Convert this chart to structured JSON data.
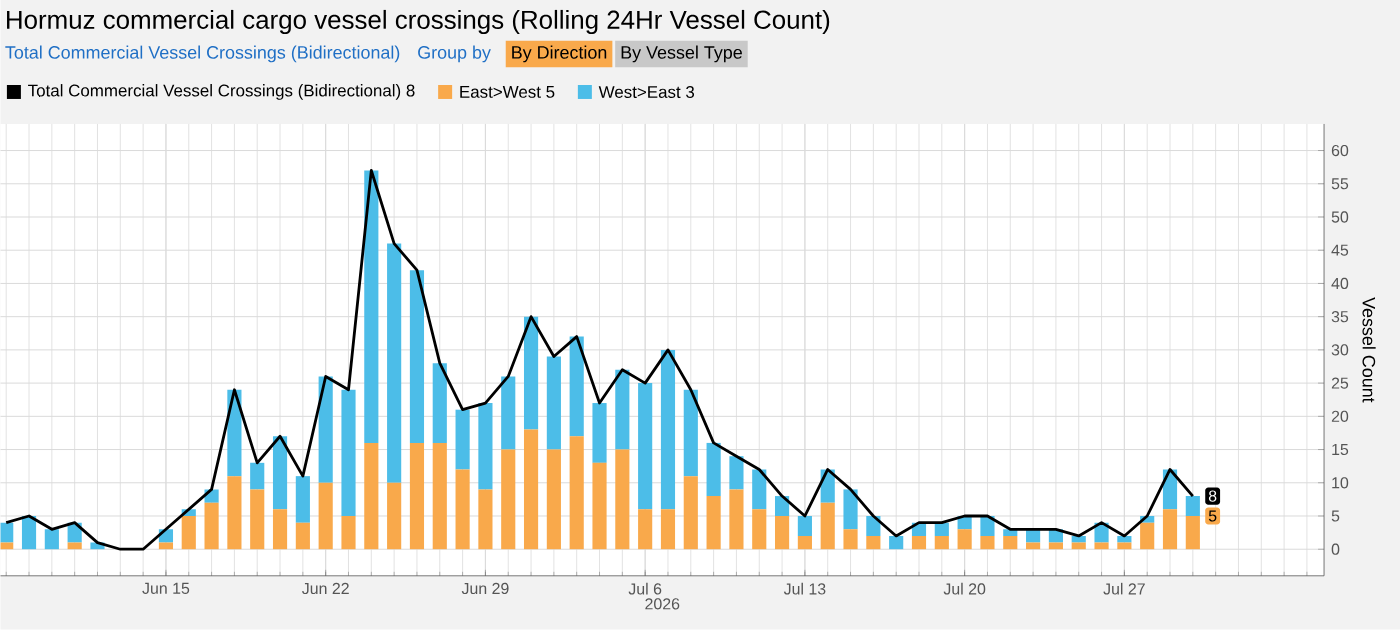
{
  "chart_data": {
    "type": "bar",
    "stacked": true,
    "title": "Hormuz commercial cargo vessel crossings (Rolling 24Hr Vessel Count)",
    "subtitle": "Total Commercial Vessel Crossings (Bidirectional)",
    "annotations": [
      "Group by",
      "By Direction",
      "By Vessel Type"
    ],
    "xlabel": "2026",
    "ylabel": "Vessel Count",
    "x": [
      "2026-06-08",
      "2026-06-09",
      "2026-06-10",
      "2026-06-11",
      "2026-06-12",
      "2026-06-13",
      "2026-06-14",
      "2026-06-15",
      "2026-06-16",
      "2026-06-17",
      "2026-06-18",
      "2026-06-19",
      "2026-06-20",
      "2026-06-21",
      "2026-06-22",
      "2026-06-23",
      "2026-06-24",
      "2026-06-25",
      "2026-06-26",
      "2026-06-27",
      "2026-06-28",
      "2026-06-29",
      "2026-06-30",
      "2026-07-01",
      "2026-07-02",
      "2026-07-03",
      "2026-07-04",
      "2026-07-05",
      "2026-07-06",
      "2026-07-07",
      "2026-07-08",
      "2026-07-09",
      "2026-07-10",
      "2026-07-11",
      "2026-07-12",
      "2026-07-13",
      "2026-07-14",
      "2026-07-15",
      "2026-07-16",
      "2026-07-17",
      "2026-07-18",
      "2026-07-19",
      "2026-07-20",
      "2026-07-21",
      "2026-07-22",
      "2026-07-23",
      "2026-07-24",
      "2026-07-25",
      "2026-07-26",
      "2026-07-27",
      "2026-07-28",
      "2026-07-29",
      "2026-07-30"
    ],
    "series": [
      {
        "name": "Total Commercial Vessel Crossings (Bidirectional) 8",
        "type": "line",
        "color": "#000000",
        "values": [
          4,
          5,
          3,
          4,
          1,
          0,
          0,
          3,
          6,
          9,
          24,
          13,
          17,
          11,
          26,
          24,
          57,
          46,
          42,
          28,
          21,
          22,
          26,
          35,
          29,
          32,
          22,
          27,
          25,
          30,
          24,
          16,
          14,
          12,
          8,
          5,
          12,
          9,
          5,
          2,
          4,
          4,
          5,
          5,
          3,
          3,
          3,
          2,
          4,
          2,
          5,
          12,
          8
        ],
        "value_labels": [
          null,
          null,
          null,
          null,
          null,
          null,
          null,
          null,
          null,
          null,
          null,
          null,
          null,
          null,
          null,
          null,
          null,
          null,
          null,
          null,
          null,
          null,
          null,
          null,
          null,
          null,
          null,
          null,
          null,
          null,
          null,
          null,
          null,
          null,
          null,
          null,
          null,
          null,
          null,
          null,
          null,
          null,
          null,
          null,
          null,
          null,
          null,
          null,
          null,
          null,
          null,
          null,
          "8"
        ]
      },
      {
        "name": "East>West 5",
        "color": "#f9a94b",
        "values": [
          1,
          0,
          0,
          1,
          0,
          0,
          0,
          1,
          5,
          7,
          11,
          9,
          6,
          4,
          10,
          5,
          16,
          10,
          16,
          16,
          12,
          9,
          15,
          18,
          15,
          17,
          13,
          15,
          6,
          6,
          11,
          8,
          9,
          6,
          5,
          2,
          7,
          3,
          2,
          0,
          2,
          2,
          3,
          2,
          2,
          1,
          1,
          1,
          1,
          1,
          4,
          6,
          5
        ],
        "value_labels": [
          null,
          null,
          null,
          null,
          null,
          null,
          null,
          null,
          null,
          null,
          null,
          null,
          null,
          null,
          null,
          null,
          null,
          null,
          null,
          null,
          null,
          null,
          null,
          null,
          null,
          null,
          null,
          null,
          null,
          null,
          null,
          null,
          null,
          null,
          null,
          null,
          null,
          null,
          null,
          null,
          null,
          null,
          null,
          null,
          null,
          null,
          null,
          null,
          null,
          null,
          null,
          null,
          "5"
        ]
      },
      {
        "name": "West>East 3",
        "color": "#4cbde8",
        "values": [
          3,
          5,
          3,
          3,
          1,
          0,
          0,
          2,
          1,
          2,
          13,
          4,
          11,
          7,
          16,
          19,
          41,
          36,
          26,
          12,
          9,
          13,
          11,
          17,
          14,
          15,
          9,
          12,
          19,
          24,
          13,
          8,
          5,
          6,
          3,
          3,
          5,
          6,
          3,
          2,
          2,
          2,
          2,
          3,
          1,
          2,
          2,
          1,
          3,
          1,
          1,
          6,
          3
        ]
      }
    ],
    "xlim": [
      "2026-06-07T18:00",
      "2026-08-04T18:00"
    ],
    "xticks": [
      {
        "value": "2026-06-15",
        "label": "Jun 15"
      },
      {
        "value": "2026-06-22",
        "label": "Jun 22"
      },
      {
        "value": "2026-06-29",
        "label": "Jun 29"
      },
      {
        "value": "2026-07-06",
        "label": "Jul 6"
      },
      {
        "value": "2026-07-13",
        "label": "Jul 13"
      },
      {
        "value": "2026-07-20",
        "label": "Jul 20"
      },
      {
        "value": "2026-07-27",
        "label": "Jul 27"
      }
    ],
    "ylim": [
      -4,
      64
    ],
    "yticks": [
      0,
      5,
      10,
      15,
      20,
      25,
      30,
      35,
      40,
      45,
      50,
      55,
      60
    ],
    "grid": true,
    "legend": "top left",
    "marker": "none",
    "line_style": "solid"
  }
}
